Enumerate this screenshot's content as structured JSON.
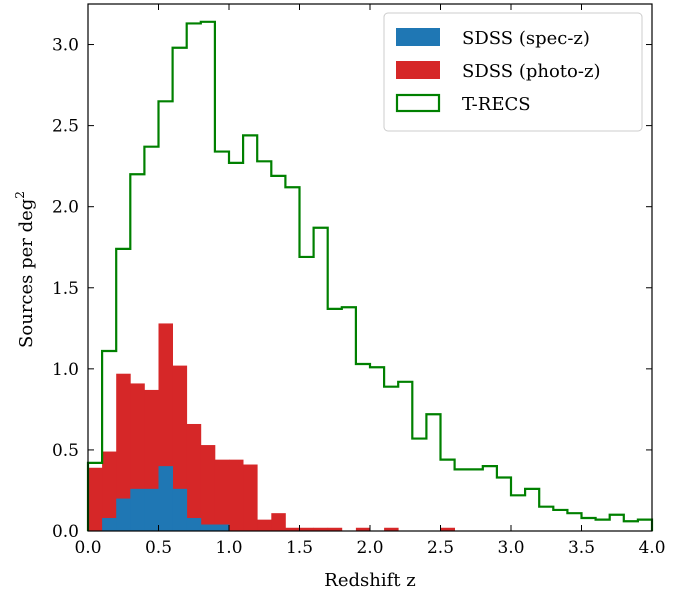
{
  "chart_data": {
    "type": "bar",
    "title": "",
    "xlabel": "Redshift z",
    "ylabel": "Sources per deg",
    "ylabel_superscript": "2",
    "xlim": [
      0.0,
      4.0
    ],
    "ylim": [
      0.0,
      3.25
    ],
    "xticks": [
      0.0,
      0.5,
      1.0,
      1.5,
      2.0,
      2.5,
      3.0,
      3.5,
      4.0
    ],
    "xtick_labels": [
      "0.0",
      "0.5",
      "1.0",
      "1.5",
      "2.0",
      "2.5",
      "3.0",
      "3.5",
      "4.0"
    ],
    "yticks": [
      0.0,
      0.5,
      1.0,
      1.5,
      2.0,
      2.5,
      3.0
    ],
    "ytick_labels": [
      "0.0",
      "0.5",
      "1.0",
      "1.5",
      "2.0",
      "2.5",
      "3.0"
    ],
    "legend_position": "top-right",
    "grid": false,
    "bin_width": 0.1,
    "series": [
      {
        "name": "SDSS (photo-z)",
        "style": "filled",
        "color": "#d62728",
        "x": [
          0.05,
          0.15,
          0.25,
          0.35,
          0.45,
          0.55,
          0.65,
          0.75,
          0.85,
          0.95,
          1.05,
          1.15,
          1.25,
          1.35,
          1.45,
          1.55,
          1.65,
          1.75,
          1.85,
          1.95,
          2.05,
          2.15,
          2.25,
          2.35,
          2.45,
          2.55
        ],
        "values": [
          0.39,
          0.49,
          0.97,
          0.91,
          0.87,
          1.28,
          1.02,
          0.66,
          0.53,
          0.44,
          0.44,
          0.41,
          0.07,
          0.11,
          0.02,
          0.02,
          0.02,
          0.02,
          0.0,
          0.02,
          0.0,
          0.02,
          0.0,
          0.0,
          0.0,
          0.02
        ]
      },
      {
        "name": "SDSS (spec-z)",
        "style": "filled",
        "color": "#1f77b4",
        "x": [
          0.05,
          0.15,
          0.25,
          0.35,
          0.45,
          0.55,
          0.65,
          0.75,
          0.85,
          0.95
        ],
        "values": [
          0.0,
          0.08,
          0.2,
          0.26,
          0.26,
          0.4,
          0.26,
          0.08,
          0.04,
          0.04
        ]
      },
      {
        "name": "T-RECS",
        "style": "step",
        "color": "#008000",
        "x": [
          0.05,
          0.15,
          0.25,
          0.35,
          0.45,
          0.55,
          0.65,
          0.75,
          0.85,
          0.95,
          1.05,
          1.15,
          1.25,
          1.35,
          1.45,
          1.55,
          1.65,
          1.75,
          1.85,
          1.95,
          2.05,
          2.15,
          2.25,
          2.35,
          2.45,
          2.55,
          2.65,
          2.75,
          2.85,
          2.95,
          3.05,
          3.15,
          3.25,
          3.35,
          3.45,
          3.55,
          3.65,
          3.75,
          3.85,
          3.95
        ],
        "values": [
          0.42,
          1.11,
          1.74,
          2.2,
          2.37,
          2.65,
          2.98,
          3.13,
          3.14,
          2.34,
          2.27,
          2.44,
          2.28,
          2.19,
          2.12,
          1.69,
          1.87,
          1.37,
          1.38,
          1.03,
          1.01,
          0.89,
          0.92,
          0.57,
          0.72,
          0.44,
          0.38,
          0.38,
          0.4,
          0.33,
          0.22,
          0.26,
          0.15,
          0.13,
          0.11,
          0.08,
          0.07,
          0.1,
          0.06,
          0.07
        ]
      }
    ],
    "legend": [
      {
        "label": "SDSS (spec-z)",
        "color": "#1f77b4",
        "style": "filled"
      },
      {
        "label": "SDSS (photo-z)",
        "color": "#d62728",
        "style": "filled"
      },
      {
        "label": "T-RECS",
        "color": "#008000",
        "style": "step"
      }
    ]
  }
}
